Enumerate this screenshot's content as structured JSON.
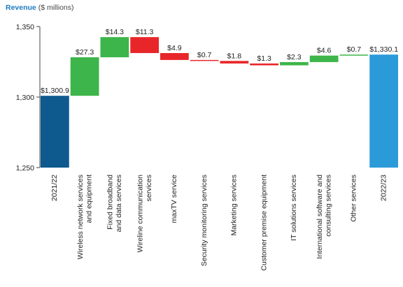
{
  "chart_data": {
    "type": "waterfall",
    "title": "Revenue",
    "subtitle": "($ millions)",
    "categories": [
      "2021/22",
      "Wireless network services\nand equipment",
      "Fixed broadband\nand data services",
      "Wireline communication\nservices",
      "maxTV service",
      "Security monitoring services",
      "Marketing services",
      "Customer premise equipment",
      "IT solutions services",
      "International software and\nconsulting services",
      "Other services",
      "2022/23"
    ],
    "measures": [
      "total",
      "relative",
      "relative",
      "relative",
      "relative",
      "relative",
      "relative",
      "relative",
      "relative",
      "relative",
      "relative",
      "total"
    ],
    "values": [
      1300.9,
      27.3,
      14.3,
      -11.3,
      -4.9,
      -0.7,
      -1.8,
      -1.3,
      2.3,
      4.6,
      0.7,
      1330.1
    ],
    "value_labels": [
      "$1,300.9",
      "$27.3",
      "$14.3",
      "$11.3",
      "$4.9",
      "$0.7",
      "$1.8",
      "$1.3",
      "$2.3",
      "$4.6",
      "$0.7",
      "$1,330.1"
    ],
    "colors": [
      "#0e5a8f",
      "#3db54a",
      "#3db54a",
      "#e8262a",
      "#e8262a",
      "#e8262a",
      "#e8262a",
      "#e8262a",
      "#3db54a",
      "#3db54a",
      "#3db54a",
      "#2b9ad8"
    ],
    "ylim": [
      1250,
      1350
    ],
    "yticks": [
      {
        "value": 1250,
        "label": "1,250"
      },
      {
        "value": 1300,
        "label": "1,300"
      },
      {
        "value": 1350,
        "label": "1,350"
      }
    ]
  }
}
